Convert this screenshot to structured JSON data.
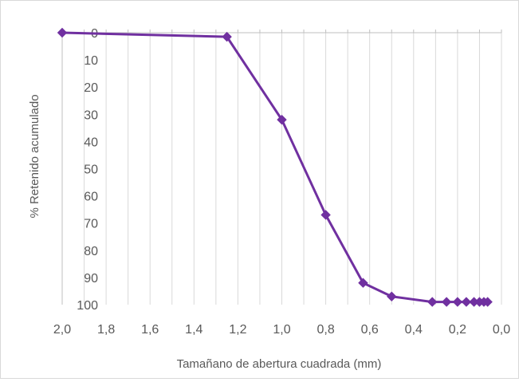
{
  "chart_data": {
    "type": "line",
    "title": "",
    "xlabel": "Tamañano de abertura cuadrada (mm)",
    "ylabel": "% Retenido acumulado",
    "x_reversed": true,
    "y_reversed": true,
    "xlim": [
      2.0,
      0.0
    ],
    "ylim": [
      0,
      100
    ],
    "x_ticks": [
      "2,0",
      "1,8",
      "1,6",
      "1,4",
      "1,2",
      "1,0",
      "0,8",
      "0,6",
      "0,4",
      "0,2",
      "0,0"
    ],
    "y_ticks": [
      "0",
      "10",
      "20",
      "30",
      "40",
      "50",
      "60",
      "70",
      "80",
      "90",
      "100"
    ],
    "grid": "vertical",
    "legend": "none",
    "series": [
      {
        "color": "#7030a0",
        "marker": "diamond",
        "x": [
          2.0,
          1.25,
          1.0,
          0.8,
          0.63,
          0.5,
          0.315,
          0.25,
          0.2,
          0.16,
          0.125,
          0.1,
          0.08,
          0.063
        ],
        "y": [
          0,
          1.5,
          32,
          67,
          92,
          97,
          99,
          99,
          99,
          99,
          99,
          99,
          99,
          99
        ]
      }
    ]
  }
}
